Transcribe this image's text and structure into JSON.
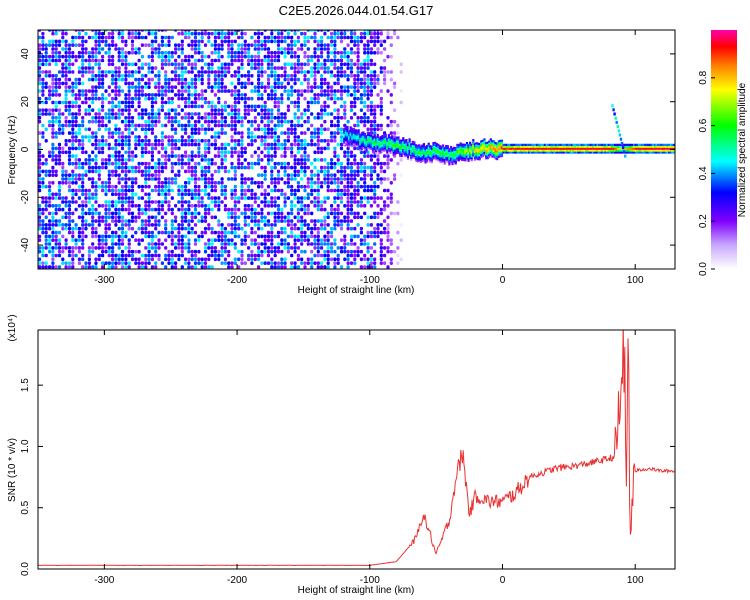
{
  "title": "C2E5.2026.044.01.54.G17",
  "chart_data": [
    {
      "type": "heatmap",
      "xlabel": "Height of straight line (km)",
      "ylabel": "Frequency (Hz)",
      "xlim": [
        -350,
        130
      ],
      "ylim": [
        -50,
        50
      ],
      "xticks": [
        -300,
        -200,
        -100,
        0,
        100
      ],
      "yticks": [
        -40,
        -20,
        0,
        20,
        40
      ],
      "xtick_labels": [
        "-300",
        "-200",
        "-100",
        "0",
        "100"
      ],
      "ytick_labels": [
        "-40",
        "-20",
        "0",
        "20",
        "40"
      ],
      "colorbar": {
        "label": "Normalized spectral amplitude",
        "range": [
          0,
          1
        ],
        "ticks": [
          0.0,
          0.2,
          0.4,
          0.6,
          0.8
        ],
        "tick_labels": [
          "0.0",
          "0.2",
          "0.4",
          "0.6",
          "0.8"
        ],
        "colormap": [
          "#ffffff",
          "#8000ff",
          "#0000ff",
          "#00ffff",
          "#00ff00",
          "#ffff00",
          "#ff8000",
          "#ff0000",
          "#ff00aa"
        ]
      },
      "trace": {
        "x": [
          -120,
          -110,
          -100,
          -90,
          -80,
          -70,
          -60,
          -50,
          -40,
          -30,
          -20,
          -10,
          0,
          20,
          40,
          60,
          80,
          90,
          100,
          110,
          130
        ],
        "frequency": [
          6,
          4,
          3,
          2,
          1.5,
          0,
          -2,
          -1,
          -3,
          -1,
          0,
          0,
          0,
          0,
          0,
          0,
          0,
          0,
          0,
          0,
          0
        ],
        "amplitude": [
          0.4,
          0.45,
          0.5,
          0.5,
          0.55,
          0.5,
          0.5,
          0.55,
          0.5,
          0.6,
          0.7,
          0.75,
          0.85,
          0.9,
          0.9,
          0.9,
          0.9,
          0.6,
          0.9,
          0.9,
          0.95
        ]
      },
      "noise_region": {
        "x_from": -350,
        "x_to": -100
      }
    },
    {
      "type": "line",
      "xlabel": "Height of straight line (km)",
      "ylabel": "SNR (10 * v/v)",
      "y_multiplier": "(x10⁴)",
      "xlim": [
        -350,
        130
      ],
      "ylim": [
        0,
        1.95
      ],
      "xticks": [
        -300,
        -200,
        -100,
        0,
        100
      ],
      "yticks": [
        0.0,
        0.5,
        1.0,
        1.5
      ],
      "xtick_labels": [
        "-300",
        "-200",
        "-100",
        "0",
        "100"
      ],
      "ytick_labels": [
        "0.0",
        "0.5",
        "1.0",
        "1.5"
      ],
      "color": "#e83232",
      "series": [
        {
          "x": [
            -350,
            -200,
            -100,
            -80,
            -65,
            -60,
            -55,
            -50,
            -40,
            -35,
            -30,
            -25,
            -20,
            -10,
            0,
            10,
            20,
            40,
            60,
            80,
            85,
            88,
            90,
            92,
            93,
            95,
            96,
            98,
            100,
            110,
            120,
            130
          ],
          "values": [
            0.03,
            0.03,
            0.03,
            0.06,
            0.25,
            0.45,
            0.3,
            0.12,
            0.4,
            0.75,
            0.95,
            0.45,
            0.6,
            0.55,
            0.55,
            0.62,
            0.75,
            0.82,
            0.85,
            0.9,
            0.92,
            1.25,
            1.6,
            1.9,
            0.5,
            1.95,
            0.2,
            0.6,
            0.8,
            0.82,
            0.8,
            0.8
          ]
        }
      ]
    }
  ]
}
